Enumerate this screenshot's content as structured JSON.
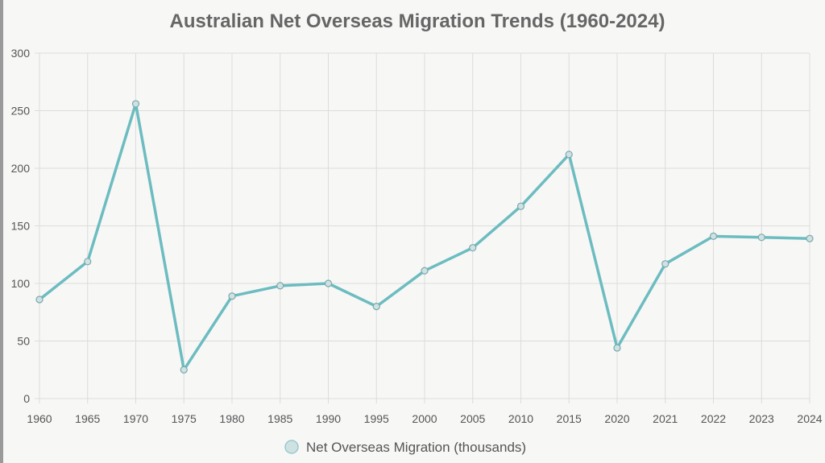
{
  "chart_data": {
    "type": "line",
    "title": "Australian Net Overseas Migration Trends (1960-2024)",
    "xlabel": "",
    "ylabel": "",
    "categories": [
      "1960",
      "1965",
      "1970",
      "1975",
      "1980",
      "1985",
      "1990",
      "1995",
      "2000",
      "2005",
      "2010",
      "2015",
      "2020",
      "2021",
      "2022",
      "2023",
      "2024"
    ],
    "series": [
      {
        "name": "Net Overseas Migration (thousands)",
        "values": [
          86,
          119,
          256,
          25,
          89,
          98,
          100,
          80,
          111,
          131,
          167,
          212,
          44,
          117,
          141,
          140,
          139
        ],
        "color": "#6cbcc0"
      }
    ],
    "ylim": [
      0,
      300
    ],
    "yticks": [
      "0",
      "50",
      "100",
      "150",
      "200",
      "250",
      "300"
    ],
    "grid": true,
    "legend_position": "bottom"
  },
  "colors": {
    "background": "#f7f7f6",
    "grid": "#dcdcdc",
    "axis_text": "#555555",
    "title_text": "#666666",
    "line": "#6cbcc0",
    "marker_fill": "#cfe2e3"
  }
}
